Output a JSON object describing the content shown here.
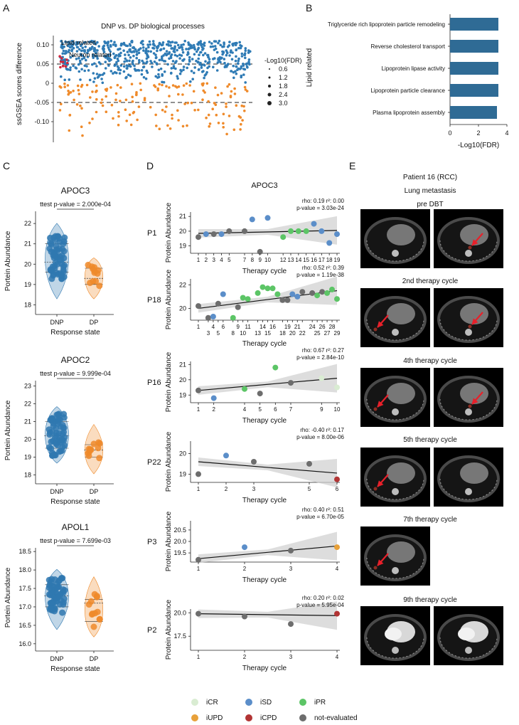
{
  "panels": {
    "A": {
      "letter": "A",
      "title": "DNP vs. DP biological processes",
      "ylabel": "ssGSEA scores difference",
      "annotations": [
        "Lipid related",
        "Neuron related"
      ],
      "yticks": [
        "0.10",
        "0.05",
        "0",
        "-0.05",
        "-0.10"
      ],
      "legend_title": "-Log10(FDR)",
      "legend_items": [
        "0.6",
        "1.2",
        "1.8",
        "2.4",
        "3.0"
      ]
    },
    "B": {
      "letter": "B",
      "group_label": "Lipid related",
      "xlabel": "-Log10(FDR)",
      "xticks": [
        "0",
        "2",
        "4"
      ]
    },
    "C": {
      "letter": "C",
      "ylabel": "Portein Abundance",
      "xlabel": "Response state",
      "groups": [
        "DNP",
        "DP"
      ],
      "plots": [
        {
          "title": "APOC3",
          "ttest": "ttest p-value = 2.000e-04",
          "yticks": [
            "22",
            "21",
            "20",
            "19",
            "18"
          ]
        },
        {
          "title": "APOC2",
          "ttest": "ttest p-value = 9.999e-04",
          "yticks": [
            "23",
            "22",
            "21",
            "20",
            "19",
            "18"
          ]
        },
        {
          "title": "APOL1",
          "ttest": "ttest p-value = 7.699e-03",
          "yticks": [
            "18.5",
            "18.0",
            "17.5",
            "17.0",
            "16.5",
            "16.0"
          ]
        }
      ]
    },
    "D": {
      "letter": "D",
      "title": "APOC3",
      "ylabel": "Protein Abundance",
      "xlabel": "Therapy cycle",
      "legend": [
        {
          "label": "iCR",
          "color": "#d9ecd2"
        },
        {
          "label": "iSD",
          "color": "#5b8ec9"
        },
        {
          "label": "iPR",
          "color": "#5cc566"
        },
        {
          "label": "iUPD",
          "color": "#e8a13a"
        },
        {
          "label": "iCPD",
          "color": "#b23434"
        },
        {
          "label": "not-evaluated",
          "color": "#6d6d6d"
        }
      ],
      "rows": [
        {
          "patient": "P1",
          "stats1": "rho: 0.19 r²: 0.00",
          "stats2": "p-value = 3.03e-24",
          "yticks": [
            "21",
            "20",
            "19"
          ]
        },
        {
          "patient": "P18",
          "stats1": "rho: 0.52 r²: 0.39",
          "stats2": "p-value = 1.19e-38",
          "yticks": [
            "22",
            "20"
          ]
        },
        {
          "patient": "P16",
          "stats1": "rho: 0.67 r²: 0.27",
          "stats2": "p-value = 2.84e-10",
          "yticks": [
            "21",
            "20",
            "19"
          ]
        },
        {
          "patient": "P22",
          "stats1": "rho: -0.40 r²: 0.17",
          "stats2": "p-value = 8.00e-06",
          "yticks": [
            "20",
            "19"
          ]
        },
        {
          "patient": "P3",
          "stats1": "rho: 0.40 r²: 0.51",
          "stats2": "p-value = 6.70e-05",
          "yticks": [
            "20.5",
            "20.0",
            "19.5"
          ]
        },
        {
          "patient": "P2",
          "stats1": "rho: 0.20 r²: 0.02",
          "stats2": "p-value = 5.95e-04",
          "yticks": [
            "20.0",
            "17.5"
          ]
        }
      ]
    },
    "E": {
      "letter": "E",
      "title_lines": [
        "Patient 16 (RCC)",
        "Lung metastasis",
        "pre DBT"
      ],
      "stage_labels": [
        "2nd therapy cycle",
        "4th therapy cycle",
        "5th therapy cycle",
        "7th therapy cycle",
        "9th therapy cycle"
      ]
    }
  },
  "chart_data": [
    {
      "type": "scatter",
      "panel": "A",
      "title": "DNP vs. DP biological processes",
      "ylabel": "ssGSEA scores difference",
      "ylim": [
        -0.15,
        0.12
      ],
      "reference_lines": [
        0.05,
        -0.05
      ],
      "series": [
        {
          "color": "#2f7bb5",
          "n_points": 620,
          "y_range": [
            0.0,
            0.11
          ]
        },
        {
          "color": "#ef8a2a",
          "n_points": 160,
          "y_range": [
            -0.14,
            0.0
          ]
        },
        {
          "name": "Lipid related",
          "color": "#d1263c",
          "n_points": 10,
          "y_range": [
            0.04,
            0.07
          ]
        }
      ]
    },
    {
      "type": "bar",
      "panel": "B",
      "orientation": "horizontal",
      "categories": [
        "Triglyceride rich lipoprotein particle remodeling",
        "Reverse cholesterol transport",
        "Lipoprotein lipase activity",
        "Lipoprotein particle clearance",
        "Plasma lipoprotein assembly"
      ],
      "values": [
        3.4,
        3.4,
        3.4,
        3.4,
        3.3
      ],
      "xlabel": "-Log10(FDR)",
      "xlim": [
        0,
        4
      ],
      "color": "#2f6b95"
    },
    {
      "type": "violin",
      "panel": "C",
      "title": "APOC3",
      "categories": [
        "DNP",
        "DP"
      ],
      "ylim": [
        17.7,
        22.6
      ],
      "DNP": {
        "min": 18.5,
        "q1": 19.6,
        "median": 20.1,
        "q3": 21.0,
        "max": 21.8,
        "n": 60
      },
      "DP": {
        "min": 18.5,
        "q1": 19.0,
        "median": 19.3,
        "q3": 19.8,
        "max": 20.1,
        "n": 12
      }
    },
    {
      "type": "violin",
      "panel": "C",
      "title": "APOC2",
      "categories": [
        "DNP",
        "DP"
      ],
      "ylim": [
        17.7,
        23.3
      ],
      "DNP": {
        "min": 18.9,
        "q1": 19.5,
        "median": 20.2,
        "q3": 21.0,
        "max": 21.6,
        "n": 60
      },
      "DP": {
        "min": 18.3,
        "q1": 19.0,
        "median": 19.4,
        "q3": 19.7,
        "max": 20.6,
        "n": 12
      }
    },
    {
      "type": "violin",
      "panel": "C",
      "title": "APOL1",
      "categories": [
        "DNP",
        "DP"
      ],
      "ylim": [
        15.9,
        18.6
      ],
      "DNP": {
        "min": 16.5,
        "q1": 17.0,
        "median": 17.3,
        "q3": 17.6,
        "max": 17.9,
        "n": 60
      },
      "DP": {
        "min": 16.3,
        "q1": 16.6,
        "median": 17.1,
        "q3": 17.2,
        "max": 17.7,
        "n": 12
      }
    },
    {
      "type": "scatter",
      "panel": "D",
      "patient": "P1",
      "ylim": [
        18.5,
        21.3
      ],
      "x_ticks": [
        1,
        2,
        3,
        4,
        5,
        7,
        8,
        9,
        10,
        12,
        13,
        14,
        15,
        16,
        17,
        18,
        19
      ],
      "fit": [
        [
          1,
          19.85
        ],
        [
          19,
          20.05
        ]
      ],
      "points": [
        {
          "x": 1,
          "y": 19.6,
          "s": "not-evaluated"
        },
        {
          "x": 2,
          "y": 19.8,
          "s": "iSD"
        },
        {
          "x": 3,
          "y": 19.8,
          "s": "not-evaluated"
        },
        {
          "x": 4,
          "y": 19.8,
          "s": "iSD"
        },
        {
          "x": 5,
          "y": 20.0,
          "s": "not-evaluated"
        },
        {
          "x": 7,
          "y": 20.0,
          "s": "not-evaluated"
        },
        {
          "x": 8,
          "y": 20.8,
          "s": "iSD"
        },
        {
          "x": 9,
          "y": 18.6,
          "s": "not-evaluated"
        },
        {
          "x": 10,
          "y": 20.9,
          "s": "iSD"
        },
        {
          "x": 12,
          "y": 19.6,
          "s": "iPR"
        },
        {
          "x": 13,
          "y": 20.0,
          "s": "iPR"
        },
        {
          "x": 14,
          "y": 20.0,
          "s": "iPR"
        },
        {
          "x": 15,
          "y": 20.0,
          "s": "iPR"
        },
        {
          "x": 16,
          "y": 20.5,
          "s": "iSD"
        },
        {
          "x": 17,
          "y": 20.0,
          "s": "iSD"
        },
        {
          "x": 18,
          "y": 19.2,
          "s": "iSD"
        },
        {
          "x": 19,
          "y": 19.8,
          "s": "iSD"
        }
      ]
    },
    {
      "type": "scatter",
      "panel": "D",
      "patient": "P18",
      "ylim": [
        19.0,
        22.5
      ],
      "x_ticks": [
        1,
        3,
        4,
        5,
        6,
        8,
        9,
        10,
        11,
        13,
        14,
        15,
        16,
        18,
        19,
        20,
        21,
        22,
        24,
        25,
        26,
        27,
        28,
        29
      ],
      "fit": [
        [
          1,
          20.0
        ],
        [
          29,
          21.5
        ]
      ],
      "points": [
        {
          "x": 1,
          "y": 20.2,
          "s": "not-evaluated"
        },
        {
          "x": 3,
          "y": 19.2,
          "s": "not-evaluated"
        },
        {
          "x": 4,
          "y": 19.3,
          "s": "iSD"
        },
        {
          "x": 5,
          "y": 20.4,
          "s": "not-evaluated"
        },
        {
          "x": 6,
          "y": 21.2,
          "s": "iSD"
        },
        {
          "x": 8,
          "y": 19.2,
          "s": "iPR"
        },
        {
          "x": 9,
          "y": 20.1,
          "s": "not-evaluated"
        },
        {
          "x": 10,
          "y": 20.9,
          "s": "iPR"
        },
        {
          "x": 11,
          "y": 20.8,
          "s": "iPR"
        },
        {
          "x": 13,
          "y": 21.3,
          "s": "iPR"
        },
        {
          "x": 14,
          "y": 21.8,
          "s": "iPR"
        },
        {
          "x": 15,
          "y": 21.7,
          "s": "iPR"
        },
        {
          "x": 16,
          "y": 21.7,
          "s": "iPR"
        },
        {
          "x": 17,
          "y": 21.2,
          "s": "iPR"
        },
        {
          "x": 18,
          "y": 20.7,
          "s": "not-evaluated"
        },
        {
          "x": 19,
          "y": 20.7,
          "s": "not-evaluated"
        },
        {
          "x": 20,
          "y": 21.2,
          "s": "iSD"
        },
        {
          "x": 21,
          "y": 21.0,
          "s": "iSD"
        },
        {
          "x": 22,
          "y": 21.4,
          "s": "not-evaluated"
        },
        {
          "x": 24,
          "y": 21.3,
          "s": "not-evaluated"
        },
        {
          "x": 25,
          "y": 21.1,
          "s": "iPR"
        },
        {
          "x": 26,
          "y": 21.4,
          "s": "not-evaluated"
        },
        {
          "x": 27,
          "y": 21.3,
          "s": "iPR"
        },
        {
          "x": 28,
          "y": 21.6,
          "s": "iPR"
        },
        {
          "x": 29,
          "y": 20.8,
          "s": "iPR"
        }
      ]
    },
    {
      "type": "scatter",
      "panel": "D",
      "patient": "P16",
      "ylim": [
        18.5,
        21.2
      ],
      "x_ticks": [
        1,
        2,
        4,
        5,
        6,
        7,
        9,
        10
      ],
      "fit": [
        [
          1,
          19.3
        ],
        [
          10,
          20.1
        ]
      ],
      "points": [
        {
          "x": 1,
          "y": 19.3,
          "s": "not-evaluated"
        },
        {
          "x": 2,
          "y": 18.8,
          "s": "iSD"
        },
        {
          "x": 4,
          "y": 19.4,
          "s": "iPR"
        },
        {
          "x": 5,
          "y": 19.1,
          "s": "not-evaluated"
        },
        {
          "x": 6,
          "y": 20.8,
          "s": "iPR"
        },
        {
          "x": 7,
          "y": 19.8,
          "s": "not-evaluated"
        },
        {
          "x": 9,
          "y": 20.1,
          "s": "iCR"
        },
        {
          "x": 10,
          "y": 19.5,
          "s": "iCR"
        }
      ]
    },
    {
      "type": "scatter",
      "panel": "D",
      "patient": "P22",
      "ylim": [
        18.6,
        20.6
      ],
      "x_ticks": [
        1,
        2,
        3,
        5,
        6
      ],
      "fit": [
        [
          1,
          19.6
        ],
        [
          6,
          19.05
        ]
      ],
      "points": [
        {
          "x": 1,
          "y": 19.0,
          "s": "not-evaluated"
        },
        {
          "x": 2,
          "y": 19.9,
          "s": "iSD"
        },
        {
          "x": 3,
          "y": 19.6,
          "s": "not-evaluated"
        },
        {
          "x": 5,
          "y": 19.5,
          "s": "not-evaluated"
        },
        {
          "x": 6,
          "y": 18.75,
          "s": "iCPD"
        }
      ]
    },
    {
      "type": "scatter",
      "panel": "D",
      "patient": "P3",
      "ylim": [
        19.1,
        20.9
      ],
      "x_ticks": [
        1,
        2,
        3,
        4
      ],
      "fit": [
        [
          1,
          19.25
        ],
        [
          4,
          19.8
        ]
      ],
      "points": [
        {
          "x": 1,
          "y": 19.2,
          "s": "not-evaluated"
        },
        {
          "x": 2,
          "y": 19.75,
          "s": "iSD"
        },
        {
          "x": 3,
          "y": 19.6,
          "s": "not-evaluated"
        },
        {
          "x": 4,
          "y": 19.75,
          "s": "iUPD"
        }
      ]
    },
    {
      "type": "scatter",
      "panel": "D",
      "patient": "P2",
      "ylim": [
        16.0,
        20.4
      ],
      "x_ticks": [
        1,
        2,
        3,
        4
      ],
      "fit": [
        [
          1,
          19.9
        ],
        [
          4,
          19.7
        ]
      ],
      "points": [
        {
          "x": 1,
          "y": 19.9,
          "s": "not-evaluated"
        },
        {
          "x": 2,
          "y": 19.6,
          "s": "not-evaluated"
        },
        {
          "x": 3,
          "y": 18.8,
          "s": "not-evaluated"
        },
        {
          "x": 4,
          "y": 19.9,
          "s": "iCPD"
        }
      ]
    }
  ]
}
